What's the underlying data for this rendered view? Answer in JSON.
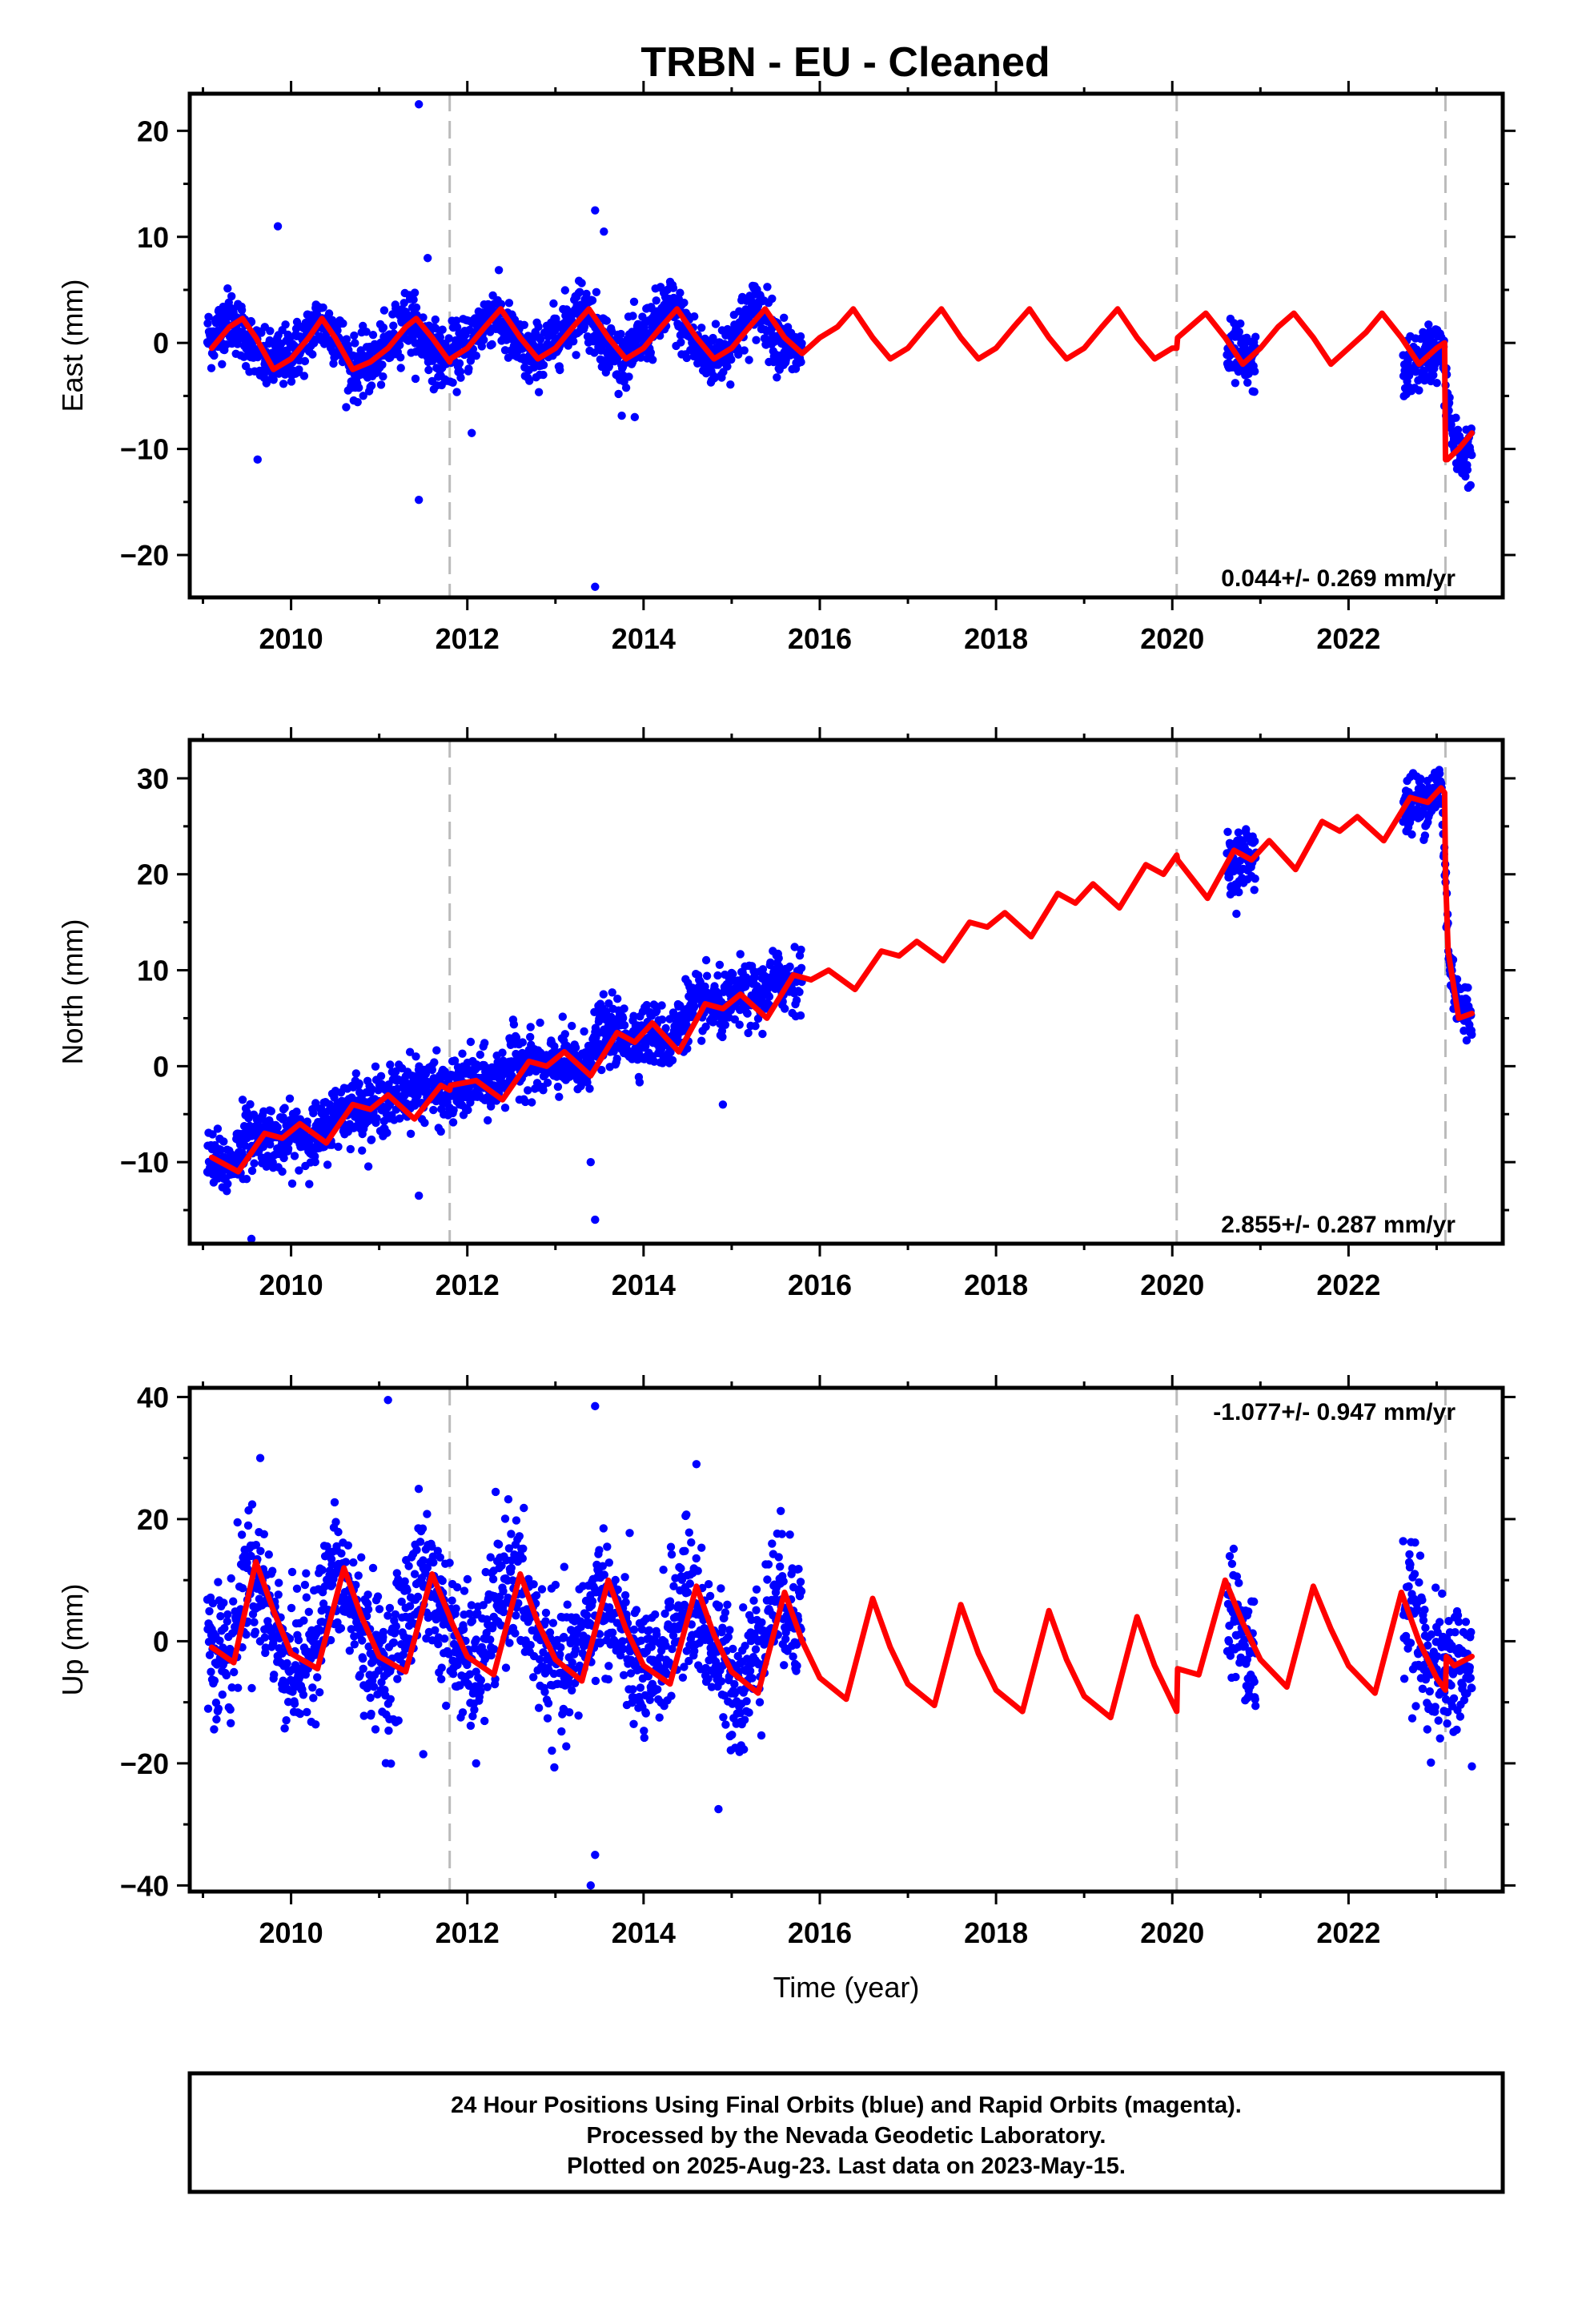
{
  "title": "TRBN  - EU - Cleaned",
  "colors": {
    "data_points": "#0000ff",
    "model_line": "#ff0000",
    "event_lines": "#bbbbbb",
    "frame": "#000000"
  },
  "footer": {
    "line1": "24 Hour Positions Using Final Orbits (blue) and Rapid Orbits (magenta).",
    "line2": "Processed by the Nevada Geodetic Laboratory.",
    "line3": "Plotted on 2025-Aug-23. Last data on 2023-May-15."
  },
  "chart_data": [
    {
      "type": "scatter",
      "ylabel": "East (mm)",
      "xlabel": "",
      "xlim": [
        2008.85,
        2023.75
      ],
      "ylim": [
        -24,
        23.5
      ],
      "xticks": [
        2010,
        2012,
        2014,
        2016,
        2018,
        2020,
        2022
      ],
      "yticks": [
        -20,
        -10,
        0,
        10,
        20
      ],
      "event_lines": [
        2011.8,
        2020.05,
        2023.1
      ],
      "rate_label": "0.044+/- 0.269 mm/yr",
      "rate_position": "bottom-right",
      "series": [
        {
          "role": "daily positions",
          "color": "#0000ff",
          "x": [
            2009.1,
            2009.3,
            2009.5,
            2009.7,
            2009.9,
            2010.1,
            2010.3,
            2010.5,
            2010.7,
            2010.9,
            2011.1,
            2011.3,
            2011.5,
            2011.7,
            2011.9,
            2012.1,
            2012.3,
            2012.5,
            2012.7,
            2012.9,
            2013.1,
            2013.3,
            2013.5,
            2013.7,
            2013.9,
            2014.1,
            2014.3,
            2014.5,
            2014.7,
            2014.9,
            2015.1,
            2015.3,
            2015.5,
            2015.7,
            2020.7,
            2020.85,
            2022.7,
            2022.9,
            2023.05,
            2023.2,
            2023.35
          ],
          "y": [
            0.5,
            2.5,
            0.5,
            -2.0,
            -1.5,
            -0.5,
            2.0,
            1.0,
            -2.5,
            -2.0,
            -0.5,
            2.5,
            0.5,
            -1.5,
            -1.0,
            1.0,
            3.0,
            0.5,
            -1.5,
            -0.5,
            1.5,
            3.5,
            1.0,
            -1.5,
            -0.5,
            1.5,
            3.5,
            1.0,
            -1.5,
            -1.0,
            1.5,
            3.5,
            0.5,
            -1.0,
            -1.0,
            -2.0,
            -2.5,
            -1.0,
            -0.5,
            -10.0,
            -10.5
          ]
        },
        {
          "role": "outliers",
          "color": "#0000ff",
          "x": [
            2009.85,
            2009.62,
            2011.45,
            2011.45,
            2013.45,
            2013.45,
            2013.55,
            2011.55,
            2012.05,
            2013.9
          ],
          "y": [
            11.0,
            -11.0,
            22.5,
            -14.8,
            -23.0,
            12.5,
            10.5,
            8.0,
            -8.5,
            -7.0
          ]
        },
        {
          "role": "model fit",
          "color": "#ff0000",
          "x": [
            2009.1,
            2009.3,
            2009.45,
            2009.6,
            2009.8,
            2010.0,
            2010.2,
            2010.35,
            2010.5,
            2010.7,
            2010.9,
            2011.1,
            2011.3,
            2011.42,
            2011.6,
            2011.8,
            2011.81,
            2012.0,
            2012.2,
            2012.38,
            2012.6,
            2012.8,
            2013.0,
            2013.2,
            2013.38,
            2013.6,
            2013.8,
            2014.0,
            2014.2,
            2014.38,
            2014.6,
            2014.8,
            2015.0,
            2015.2,
            2015.38,
            2015.6,
            2015.8,
            2016.0,
            2016.2,
            2016.38,
            2016.6,
            2016.8,
            2017.0,
            2017.2,
            2017.38,
            2017.6,
            2017.8,
            2018.0,
            2018.2,
            2018.38,
            2018.6,
            2018.8,
            2019.0,
            2019.2,
            2019.38,
            2019.6,
            2019.8,
            2020.0,
            2020.05,
            2020.06,
            2020.2,
            2020.38,
            2020.6,
            2020.8,
            2021.0,
            2021.2,
            2021.38,
            2021.6,
            2021.8,
            2022.0,
            2022.2,
            2022.38,
            2022.6,
            2022.8,
            2023.0,
            2023.09,
            2023.1,
            2023.12,
            2023.25,
            2023.4
          ],
          "y": [
            -0.5,
            1.5,
            2.3,
            0.5,
            -2.5,
            -1.5,
            0.5,
            2.3,
            0.5,
            -2.5,
            -1.8,
            -0.5,
            1.5,
            2.3,
            0.5,
            -1.8,
            -1.5,
            -0.5,
            1.5,
            3.2,
            0.5,
            -1.5,
            -0.5,
            1.5,
            3.2,
            0.5,
            -1.5,
            -0.5,
            1.5,
            3.2,
            0.5,
            -1.5,
            -0.5,
            1.5,
            3.2,
            0.5,
            -1.0,
            0.5,
            1.5,
            3.2,
            0.5,
            -1.5,
            -0.5,
            1.5,
            3.2,
            0.5,
            -1.5,
            -0.5,
            1.5,
            3.2,
            0.5,
            -1.5,
            -0.5,
            1.5,
            3.2,
            0.5,
            -1.5,
            -0.5,
            -0.5,
            0.5,
            1.5,
            2.8,
            0.5,
            -2.0,
            -0.5,
            1.5,
            2.8,
            0.5,
            -2.0,
            -0.5,
            1.0,
            2.8,
            0.5,
            -2.0,
            -0.5,
            0.0,
            -11.0,
            -11.0,
            -10.0,
            -8.5
          ]
        }
      ]
    },
    {
      "type": "scatter",
      "ylabel": "North (mm)",
      "xlabel": "",
      "xlim": [
        2008.85,
        2023.75
      ],
      "ylim": [
        -18.5,
        34
      ],
      "xticks": [
        2010,
        2012,
        2014,
        2016,
        2018,
        2020,
        2022
      ],
      "yticks": [
        -10,
        0,
        10,
        20,
        30
      ],
      "event_lines": [
        2011.8,
        2020.05,
        2023.1
      ],
      "rate_label": "2.855+/- 0.287 mm/yr",
      "rate_position": "bottom-right",
      "series": [
        {
          "role": "daily positions",
          "color": "#0000ff",
          "x": [
            2009.1,
            2009.3,
            2009.5,
            2009.7,
            2009.9,
            2010.1,
            2010.3,
            2010.5,
            2010.7,
            2010.9,
            2011.1,
            2011.3,
            2011.5,
            2011.7,
            2011.9,
            2012.1,
            2012.3,
            2012.5,
            2012.7,
            2012.9,
            2013.1,
            2013.3,
            2013.5,
            2013.7,
            2013.9,
            2014.1,
            2014.3,
            2014.5,
            2014.7,
            2014.9,
            2015.1,
            2015.3,
            2015.5,
            2015.7,
            2020.7,
            2020.85,
            2022.7,
            2022.9,
            2023.05,
            2023.15,
            2023.3
          ],
          "y": [
            -10.0,
            -10.5,
            -7.5,
            -7.0,
            -8.0,
            -7.0,
            -7.5,
            -5.0,
            -4.0,
            -4.5,
            -3.5,
            -2.5,
            -2.0,
            -3.0,
            -2.5,
            -1.5,
            -2.0,
            0.5,
            0.5,
            -0.5,
            0.5,
            -0.5,
            3.5,
            3.5,
            3.0,
            3.5,
            2.5,
            6.0,
            6.5,
            6.0,
            7.5,
            7.0,
            9.0,
            9.0,
            21.0,
            22.0,
            27.0,
            28.0,
            29.0,
            10.0,
            5.5
          ]
        },
        {
          "role": "outliers",
          "color": "#0000ff",
          "x": [
            2009.55,
            2011.45,
            2013.45,
            2013.4,
            2014.9,
            2009.45
          ],
          "y": [
            -18.0,
            -13.5,
            -16.0,
            -10.0,
            -4.0,
            -3.5
          ]
        },
        {
          "role": "model fit",
          "color": "#ff0000",
          "x": [
            2009.1,
            2009.4,
            2009.7,
            2009.9,
            2010.1,
            2010.4,
            2010.7,
            2010.9,
            2011.1,
            2011.4,
            2011.7,
            2011.8,
            2011.81,
            2012.1,
            2012.4,
            2012.7,
            2012.9,
            2013.1,
            2013.4,
            2013.7,
            2013.9,
            2014.1,
            2014.4,
            2014.7,
            2014.9,
            2015.1,
            2015.4,
            2015.7,
            2015.9,
            2016.1,
            2016.4,
            2016.7,
            2016.9,
            2017.1,
            2017.4,
            2017.7,
            2017.9,
            2018.1,
            2018.4,
            2018.7,
            2018.9,
            2019.1,
            2019.4,
            2019.7,
            2019.9,
            2020.05,
            2020.06,
            2020.4,
            2020.7,
            2020.9,
            2021.1,
            2021.4,
            2021.7,
            2021.9,
            2022.1,
            2022.4,
            2022.7,
            2022.9,
            2023.05,
            2023.09,
            2023.1,
            2023.13,
            2023.25,
            2023.4
          ],
          "y": [
            -9.5,
            -11.0,
            -7.0,
            -7.5,
            -6.0,
            -8.0,
            -4.0,
            -4.5,
            -3.0,
            -5.5,
            -2.0,
            -2.5,
            -2.0,
            -1.5,
            -3.5,
            0.5,
            0.0,
            1.5,
            -1.0,
            3.5,
            2.5,
            4.5,
            1.5,
            6.5,
            6.0,
            7.5,
            5.0,
            9.5,
            9.0,
            10.0,
            8.0,
            12.0,
            11.5,
            13.0,
            11.0,
            15.0,
            14.5,
            16.0,
            13.5,
            18.0,
            17.0,
            19.0,
            16.5,
            21.0,
            20.0,
            22.0,
            21.5,
            17.5,
            22.5,
            21.5,
            23.5,
            20.5,
            25.5,
            24.5,
            26.0,
            23.5,
            28.0,
            27.5,
            29.0,
            28.5,
            20.0,
            12.0,
            5.0,
            5.5
          ]
        }
      ]
    },
    {
      "type": "scatter",
      "ylabel": "Up (mm)",
      "xlabel": "Time (year)",
      "xlim": [
        2008.85,
        2023.75
      ],
      "ylim": [
        -41,
        41.5
      ],
      "xticks": [
        2010,
        2012,
        2014,
        2016,
        2018,
        2020,
        2022
      ],
      "yticks": [
        -40,
        -20,
        0,
        20,
        40
      ],
      "event_lines": [
        2011.8,
        2020.05,
        2023.1
      ],
      "rate_label": "-1.077+/- 0.947 mm/yr",
      "rate_position": "top-right",
      "series": [
        {
          "role": "daily positions",
          "color": "#0000ff",
          "x": [
            2009.1,
            2009.3,
            2009.5,
            2009.7,
            2009.9,
            2010.1,
            2010.3,
            2010.5,
            2010.7,
            2010.9,
            2011.1,
            2011.3,
            2011.5,
            2011.7,
            2011.9,
            2012.1,
            2012.3,
            2012.5,
            2012.7,
            2012.9,
            2013.1,
            2013.3,
            2013.5,
            2013.7,
            2013.9,
            2014.1,
            2014.3,
            2014.5,
            2014.7,
            2014.9,
            2015.1,
            2015.3,
            2015.5,
            2015.7,
            2020.7,
            2020.85,
            2022.7,
            2022.9,
            2023.05,
            2023.2,
            2023.35
          ],
          "y": [
            0.0,
            -3.0,
            12.0,
            8.0,
            -2.0,
            -5.0,
            2.0,
            11.0,
            6.0,
            -2.0,
            -5.0,
            4.0,
            12.0,
            5.0,
            -2.0,
            -5.0,
            4.0,
            12.0,
            4.0,
            -3.0,
            -6.0,
            0.0,
            8.0,
            3.0,
            -4.0,
            -7.0,
            2.0,
            8.0,
            2.0,
            -4.0,
            -8.0,
            0.0,
            8.0,
            5.0,
            5.0,
            -3.0,
            5.0,
            -3.0,
            -6.0,
            -4.0,
            -5.0
          ]
        },
        {
          "role": "outliers",
          "color": "#0000ff",
          "x": [
            2009.65,
            2011.1,
            2013.45,
            2013.4,
            2013.45,
            2014.6,
            2014.85,
            2023.4,
            2012.1,
            2011.5
          ],
          "y": [
            30.0,
            39.5,
            38.5,
            -40.0,
            -35.0,
            29.0,
            -27.5,
            -20.5,
            -20.0,
            -18.5
          ]
        },
        {
          "role": "model fit",
          "color": "#ff0000",
          "x": [
            2009.1,
            2009.35,
            2009.6,
            2009.8,
            2010.0,
            2010.3,
            2010.6,
            2010.8,
            2011.0,
            2011.3,
            2011.6,
            2011.8,
            2011.81,
            2012.0,
            2012.3,
            2012.6,
            2012.8,
            2013.0,
            2013.3,
            2013.6,
            2013.8,
            2014.0,
            2014.3,
            2014.6,
            2014.8,
            2015.0,
            2015.3,
            2015.6,
            2015.8,
            2016.0,
            2016.3,
            2016.6,
            2016.8,
            2017.0,
            2017.3,
            2017.6,
            2017.8,
            2018.0,
            2018.3,
            2018.6,
            2018.8,
            2019.0,
            2019.3,
            2019.6,
            2019.8,
            2020.05,
            2020.06,
            2020.3,
            2020.6,
            2020.8,
            2021.0,
            2021.3,
            2021.6,
            2021.8,
            2022.0,
            2022.3,
            2022.6,
            2022.8,
            2023.0,
            2023.1,
            2023.11,
            2023.2,
            2023.4
          ],
          "y": [
            -1.0,
            -3.5,
            13.0,
            5.0,
            -2.0,
            -4.5,
            12.0,
            4.0,
            -2.5,
            -5.0,
            11.0,
            4.0,
            3.5,
            -2.5,
            -5.5,
            11.0,
            3.0,
            -3.0,
            -6.5,
            10.0,
            2.0,
            -4.0,
            -7.0,
            9.0,
            1.0,
            -5.0,
            -8.5,
            8.0,
            0.0,
            -6.0,
            -9.5,
            7.0,
            -1.0,
            -7.0,
            -10.5,
            6.0,
            -2.0,
            -8.0,
            -11.5,
            5.0,
            -3.0,
            -9.0,
            -12.5,
            4.0,
            -4.0,
            -11.5,
            -4.5,
            -5.5,
            10.0,
            3.0,
            -3.0,
            -7.5,
            9.0,
            2.0,
            -4.0,
            -8.5,
            8.0,
            0.0,
            -6.0,
            -8.0,
            -2.5,
            -4.0,
            -2.5
          ]
        }
      ]
    }
  ]
}
